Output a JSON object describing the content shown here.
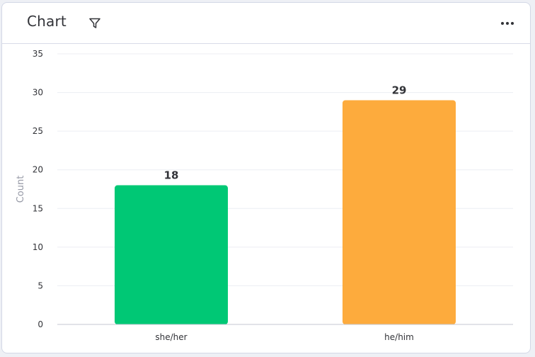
{
  "header": {
    "title": "Chart",
    "filter_icon": "filter-icon",
    "more_icon": "more-horizontal-icon"
  },
  "chart_data": {
    "type": "bar",
    "categories": [
      "she/her",
      "he/him"
    ],
    "values": [
      18,
      29
    ],
    "colors": [
      "#00c875",
      "#fdab3d"
    ],
    "title": "",
    "xlabel": "",
    "ylabel": "Count",
    "ylim": [
      0,
      35
    ],
    "yticks": [
      0,
      5,
      10,
      15,
      20,
      25,
      30,
      35
    ],
    "grid": true,
    "data_labels": true
  }
}
